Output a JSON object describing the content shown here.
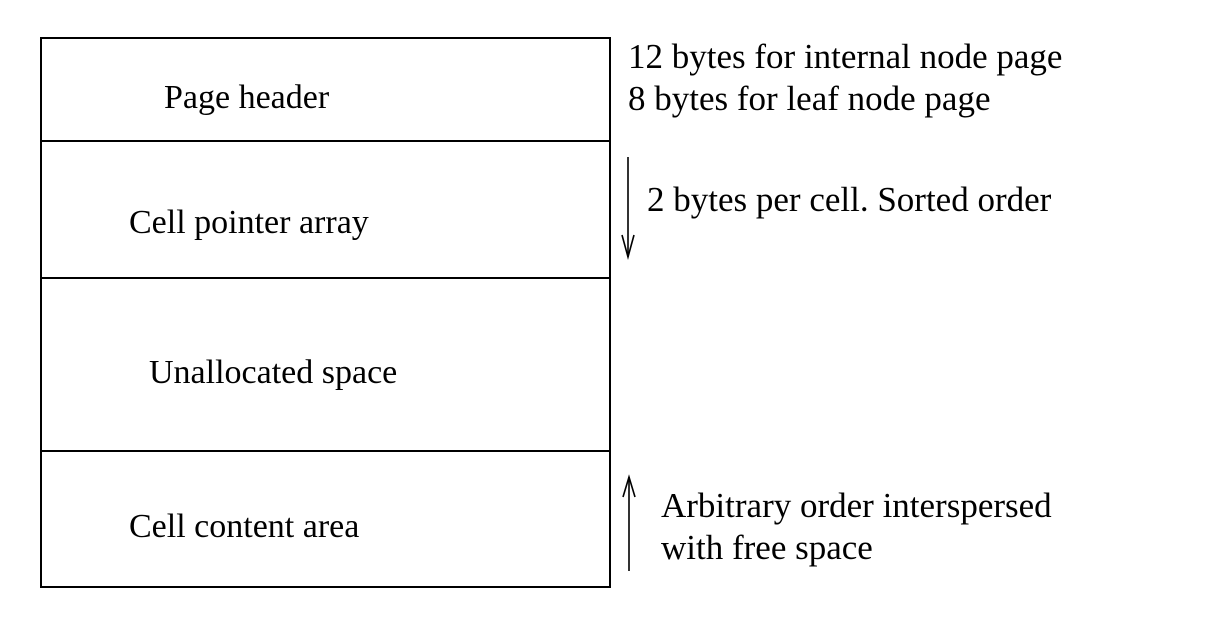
{
  "regions": {
    "header": "Page header",
    "cell_pointers": "Cell pointer array",
    "unallocated": "Unallocated space",
    "cell_content": "Cell content area"
  },
  "notes": {
    "header_line1": "12 bytes for internal node page",
    "header_line2": "8 bytes for leaf node page",
    "cell_pointers": "2 bytes per cell. Sorted order",
    "cell_content_line1": "Arbitrary order interspersed",
    "cell_content_line2": "with free space"
  },
  "arrows": {
    "cell_pointers_direction": "down",
    "cell_content_direction": "up"
  },
  "colors": {
    "stroke": "#000000",
    "background": "#ffffff"
  }
}
